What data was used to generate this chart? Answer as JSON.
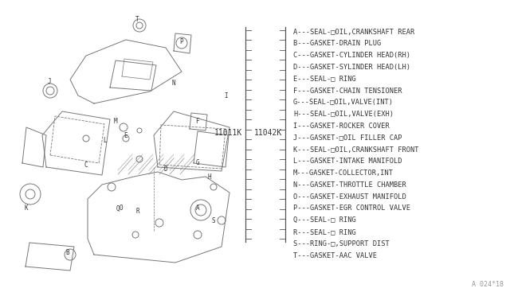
{
  "bg_color": "#ffffff",
  "part_number_left": "11011K",
  "part_number_right": "11042K",
  "watermark": "A 024°18",
  "legend_items": [
    [
      "A",
      "SEAL-□OIL,CRANKSHAFT REAR"
    ],
    [
      "B",
      "GASKET-DRAIN PLUG"
    ],
    [
      "C",
      "GASKET-CYLINDER HEAD(RH)"
    ],
    [
      "D",
      "GASKET-SYLINDER HEAD(LH)"
    ],
    [
      "E",
      "SEAL-□ RING"
    ],
    [
      "F",
      "GASKET-CHAIN TENSIONER"
    ],
    [
      "G",
      "SEAL-□OIL,VALVE(INT)"
    ],
    [
      "H",
      "SEAL-□OIL,VALVE(EXH)"
    ],
    [
      "I",
      "GASKET-ROCKER COVER"
    ],
    [
      "J",
      "GASKET-□OIL FILLER CAP"
    ],
    [
      "K",
      "SEAL-□OIL,CRANKSHAFT FRONT"
    ],
    [
      "L",
      "GASKET-INTAKE MANIFOLD"
    ],
    [
      "M",
      "GASKET-COLLECTOR,INT"
    ],
    [
      "N",
      "GASKET-THROTTLE CHAMBER"
    ],
    [
      "O",
      "GASKET-EXHAUST MANIFOLD"
    ],
    [
      "P",
      "GASKET-EGR CONTROL VALVE"
    ],
    [
      "Q",
      "SEAL-□ RING"
    ],
    [
      "R",
      "SEAL-□ RING"
    ],
    [
      "S",
      "RING-□,SUPPORT DIST"
    ],
    [
      "T",
      "GASKET-AAC VALVE"
    ]
  ],
  "diagram_color": "#777777",
  "text_color": "#333333",
  "legend_font_size": 6.2,
  "part_num_font_size": 7.0
}
